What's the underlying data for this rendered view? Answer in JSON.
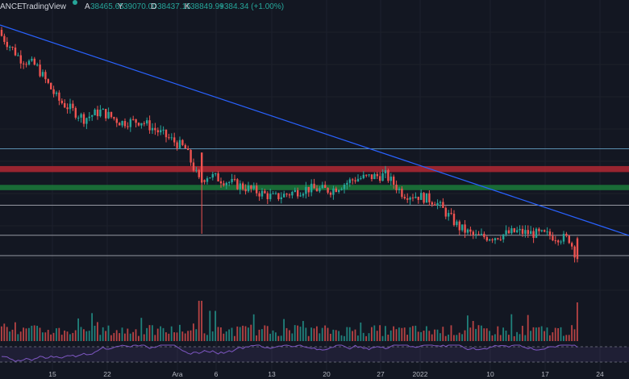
{
  "header": {
    "symbol_fragment": "ANCE",
    "brand": "TradingView",
    "open_label": "A",
    "open": "38465.65",
    "high_label": "Y",
    "high": "39070.00",
    "low_label": "D",
    "low": "38437.15",
    "close_label": "K",
    "close": "38849.99",
    "change": "+384.34 (+1.00%)"
  },
  "x_axis_labels": [
    "15",
    "22",
    "Ara",
    "6",
    "13",
    "20",
    "27",
    "2022",
    "10",
    "17",
    "24"
  ],
  "colors": {
    "background": "#131722",
    "up": "#26a69a",
    "down": "#ef5350",
    "trendline": "#2962ff",
    "resistance_zone": "#b22833",
    "support_zone": "#1b7a3a",
    "level_line": "#9598a1",
    "rsi": "#7e57c2"
  },
  "chart_data": {
    "type": "candlestick",
    "x": [
      "Nov 10",
      "Nov 13",
      "Nov 15",
      "Nov 18",
      "Nov 22",
      "Nov 25",
      "Nov 29",
      "Dec 1",
      "Dec 3",
      "Dec 4",
      "Dec 6",
      "Dec 9",
      "Dec 13",
      "Dec 16",
      "Dec 20",
      "Dec 23",
      "Dec 27",
      "Dec 30",
      "Jan 1",
      "Jan 3",
      "Jan 5",
      "Jan 7",
      "Jan 10",
      "Jan 13",
      "Jan 17",
      "Jan 19",
      "Jan 21"
    ],
    "series": [
      {
        "values": [
          68500,
          65500,
          64500,
          60000,
          57500,
          58500,
          57000,
          57200,
          53500,
          49200,
          50000,
          48500,
          47000,
          48200,
          48000,
          49500,
          50000,
          47500,
          47200,
          46500,
          43000,
          41800,
          41800,
          42500,
          42000,
          41500,
          38849.99
        ]
      }
    ],
    "horizontal_levels": [
      53500,
      46000,
      42000,
      39300
    ],
    "zones": [
      {
        "from": 50400,
        "to": 51200
      },
      {
        "from": 48000,
        "to": 48700
      }
    ],
    "indicators": [
      "volume",
      "RSI"
    ]
  }
}
